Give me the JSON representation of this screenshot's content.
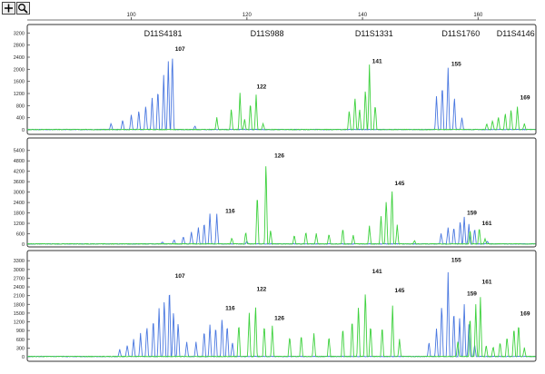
{
  "toolbar": {
    "zoom_in_icon": "plus-icon",
    "zoom_search_icon": "magnifier-icon"
  },
  "ruler": {
    "ticks": [
      100,
      120,
      140,
      160
    ]
  },
  "colors": {
    "blue": "#4a78e0",
    "green": "#3ed13e",
    "label_green": "#2e9a2e",
    "frame": "#333333"
  },
  "chart_data": [
    {
      "type": "line",
      "panel": "top",
      "y_ticks": [
        0,
        400,
        800,
        1200,
        1600,
        2000,
        2400,
        2800,
        3200
      ],
      "ylim": [
        0,
        3300
      ],
      "xlim": [
        82,
        170
      ],
      "marker_labels": [
        {
          "text": "D11S4181",
          "x": 105.5
        },
        {
          "text": "D11S988",
          "x": 123.5
        },
        {
          "text": "D11S1331",
          "x": 142
        },
        {
          "text": "D11S1760",
          "x": 157
        },
        {
          "text": "D11S4146",
          "x": 166.5
        }
      ],
      "peak_labels": [
        {
          "text": "107",
          "x": 107.1,
          "y": 2550,
          "color": "#4a78e0"
        },
        {
          "text": "122",
          "x": 121.2,
          "y": 1300,
          "color": "#2e9a2e"
        },
        {
          "text": "141",
          "x": 141.2,
          "y": 2150,
          "color": "#2e9a2e"
        },
        {
          "text": "155",
          "x": 154.9,
          "y": 2050,
          "color": "#4a78e0"
        },
        {
          "text": "169",
          "x": 166.8,
          "y": 950,
          "color": "#2e9a2e"
        }
      ],
      "series": [
        {
          "name": "",
          "color": "#4a78e0",
          "peaks": [
            [
              96.5,
              200
            ],
            [
              98.5,
              320
            ],
            [
              100,
              480
            ],
            [
              101.3,
              650
            ],
            [
              102.5,
              820
            ],
            [
              103.6,
              1050
            ],
            [
              104.6,
              1350
            ],
            [
              105.6,
              1800
            ],
            [
              106.4,
              2250
            ],
            [
              107.1,
              2520
            ],
            [
              111,
              120
            ],
            [
              152.8,
              1100
            ],
            [
              153.8,
              1500
            ],
            [
              154.8,
              2050
            ],
            [
              155.9,
              1100
            ],
            [
              157.2,
              380
            ]
          ]
        },
        {
          "name": "",
          "color": "#3ed13e",
          "peaks": [
            [
              114.8,
              400
            ],
            [
              117.3,
              700
            ],
            [
              118.8,
              1200
            ],
            [
              119.6,
              350
            ],
            [
              120.6,
              900
            ],
            [
              121.6,
              1150
            ],
            [
              122.8,
              200
            ],
            [
              137.7,
              650
            ],
            [
              138.7,
              1100
            ],
            [
              139.5,
              700
            ],
            [
              140.5,
              1350
            ],
            [
              141.2,
              2150
            ],
            [
              142.2,
              850
            ],
            [
              161.5,
              200
            ],
            [
              162.5,
              300
            ],
            [
              163.5,
              420
            ],
            [
              164.7,
              560
            ],
            [
              165.7,
              680
            ],
            [
              166.8,
              760
            ],
            [
              168,
              200
            ]
          ]
        }
      ]
    },
    {
      "type": "line",
      "panel": "middle",
      "y_ticks": [
        0,
        600,
        1200,
        1800,
        2400,
        3000,
        3600,
        4200,
        4800,
        5400
      ],
      "ylim": [
        0,
        5700
      ],
      "xlim": [
        82,
        170
      ],
      "marker_labels": [],
      "peak_labels": [
        {
          "text": "116",
          "x": 115.8,
          "y": 1700,
          "color": "#4a78e0"
        },
        {
          "text": "126",
          "x": 124.3,
          "y": 4900,
          "color": "#2e9a2e"
        },
        {
          "text": "145",
          "x": 145.1,
          "y": 3300,
          "color": "#2e9a2e"
        },
        {
          "text": "159",
          "x": 157.6,
          "y": 1600,
          "color": "#4a78e0"
        },
        {
          "text": "161",
          "x": 160.2,
          "y": 1000,
          "color": "#2e9a2e"
        }
      ],
      "series": [
        {
          "name": "",
          "color": "#4a78e0",
          "peaks": [
            [
              105.4,
              120
            ],
            [
              107.4,
              250
            ],
            [
              109,
              450
            ],
            [
              110.4,
              700
            ],
            [
              111.6,
              950
            ],
            [
              112.6,
              1250
            ],
            [
              113.6,
              1750
            ],
            [
              114.8,
              1750
            ],
            [
              120,
              150
            ],
            [
              153.6,
              600
            ],
            [
              154.8,
              950
            ],
            [
              155.8,
              1000
            ],
            [
              156.9,
              1350
            ],
            [
              157.6,
              1550
            ],
            [
              158.4,
              1150
            ],
            [
              159.4,
              900
            ],
            [
              161.6,
              150
            ]
          ]
        },
        {
          "name": "",
          "color": "#3ed13e",
          "peaks": [
            [
              117.4,
              350
            ],
            [
              119.8,
              700
            ],
            [
              121.8,
              2900
            ],
            [
              123.3,
              4800
            ],
            [
              124.1,
              800
            ],
            [
              128.2,
              500
            ],
            [
              130.2,
              700
            ],
            [
              132,
              600
            ],
            [
              134.2,
              600
            ],
            [
              136.6,
              900
            ],
            [
              138.4,
              500
            ],
            [
              141.2,
              1050
            ],
            [
              143.2,
              1600
            ],
            [
              144.1,
              2600
            ],
            [
              145.1,
              3250
            ],
            [
              146,
              1100
            ],
            [
              149,
              200
            ],
            [
              158.6,
              800
            ],
            [
              160.2,
              950
            ],
            [
              161.2,
              300
            ]
          ]
        }
      ]
    },
    {
      "type": "line",
      "panel": "bottom",
      "y_ticks": [
        0,
        300,
        600,
        900,
        1200,
        1500,
        1800,
        2100,
        2400,
        2700,
        3000,
        3300
      ],
      "ylim": [
        0,
        3400
      ],
      "xlim": [
        82,
        170
      ],
      "marker_labels": [],
      "peak_labels": [
        {
          "text": "107",
          "x": 107.1,
          "y": 2650,
          "color": "#4a78e0"
        },
        {
          "text": "116",
          "x": 115.8,
          "y": 1550,
          "color": "#4a78e0"
        },
        {
          "text": "122",
          "x": 121.2,
          "y": 2200,
          "color": "#2e9a2e"
        },
        {
          "text": "126",
          "x": 124.3,
          "y": 1200,
          "color": "#2e9a2e"
        },
        {
          "text": "141",
          "x": 141.2,
          "y": 2800,
          "color": "#2e9a2e"
        },
        {
          "text": "145",
          "x": 145.1,
          "y": 2150,
          "color": "#2e9a2e"
        },
        {
          "text": "155",
          "x": 154.9,
          "y": 3200,
          "color": "#4a78e0"
        },
        {
          "text": "159",
          "x": 157.6,
          "y": 2050,
          "color": "#4a78e0"
        },
        {
          "text": "161",
          "x": 160.2,
          "y": 2450,
          "color": "#2e9a2e"
        },
        {
          "text": "169",
          "x": 166.8,
          "y": 1350,
          "color": "#2e9a2e"
        }
      ],
      "series": [
        {
          "name": "",
          "color": "#4a78e0",
          "peaks": [
            [
              98,
              250
            ],
            [
              99.3,
              400
            ],
            [
              100.4,
              600
            ],
            [
              101.6,
              800
            ],
            [
              102.7,
              1050
            ],
            [
              103.8,
              1300
            ],
            [
              104.8,
              1650
            ],
            [
              105.7,
              2000
            ],
            [
              106.6,
              2450
            ],
            [
              107.3,
              1600
            ],
            [
              108.1,
              1200
            ],
            [
              109.6,
              500
            ],
            [
              111.2,
              500
            ],
            [
              112.6,
              900
            ],
            [
              113.6,
              1100
            ],
            [
              114.6,
              1050
            ],
            [
              115.7,
              1350
            ],
            [
              116.6,
              1100
            ],
            [
              117.5,
              500
            ],
            [
              151.5,
              500
            ],
            [
              152.8,
              950
            ],
            [
              153.7,
              1800
            ],
            [
              154.8,
              2900
            ],
            [
              155.8,
              1600
            ],
            [
              156.8,
              1300
            ],
            [
              157.6,
              1800
            ],
            [
              158.4,
              1100
            ],
            [
              159.4,
              400
            ]
          ]
        },
        {
          "name": "",
          "color": "#3ed13e",
          "peaks": [
            [
              118.6,
              1150
            ],
            [
              120.4,
              1500
            ],
            [
              121.5,
              1800
            ],
            [
              123,
              1100
            ],
            [
              124.4,
              1050
            ],
            [
              127.4,
              700
            ],
            [
              129.4,
              750
            ],
            [
              131.6,
              800
            ],
            [
              134.2,
              700
            ],
            [
              136.6,
              1000
            ],
            [
              138.2,
              1300
            ],
            [
              139.3,
              1800
            ],
            [
              140.5,
              2300
            ],
            [
              141.4,
              1100
            ],
            [
              143.4,
              1050
            ],
            [
              145.2,
              1750
            ],
            [
              146.4,
              600
            ],
            [
              156.5,
              550
            ],
            [
              158.6,
              1400
            ],
            [
              159.6,
              1800
            ],
            [
              160.4,
              2050
            ],
            [
              161.4,
              400
            ],
            [
              162.6,
              350
            ],
            [
              163.8,
              500
            ],
            [
              165,
              700
            ],
            [
              166.2,
              1000
            ],
            [
              167,
              1150
            ],
            [
              168,
              300
            ]
          ]
        }
      ]
    }
  ]
}
